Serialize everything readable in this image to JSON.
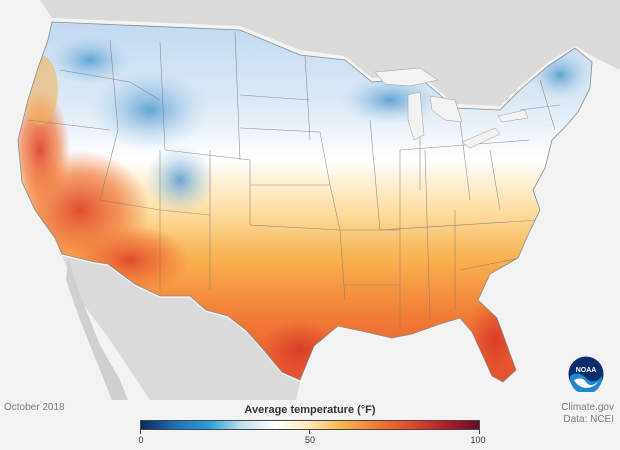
{
  "map": {
    "date_label": "October 2018",
    "credit_line_1": "Climate.gov",
    "credit_line_2": "Data: NCEI",
    "legend": {
      "title": "Average temperature (°F)",
      "min_label": "0",
      "mid_label": "50",
      "max_label": "100",
      "min": 0,
      "mid": 50,
      "max": 100,
      "stops": [
        "#0b2a5b",
        "#1f6fb5",
        "#2a9fd6",
        "#c7dff1",
        "#ffffff",
        "#fde7b2",
        "#f9b24b",
        "#f07a36",
        "#e04a2c",
        "#b31d2d",
        "#6a0d2a"
      ]
    },
    "logo_text": "NOAA",
    "colors": {
      "background": "#f3f3f3",
      "land_other": "#dadada",
      "cold": "#4d97cf",
      "cool": "#a9cbe7",
      "neutral": "#f4f6f8",
      "warm": "#fbc56e",
      "hot": "#ef7a3c",
      "very_hot": "#e04a2c",
      "border": "#777777"
    }
  }
}
